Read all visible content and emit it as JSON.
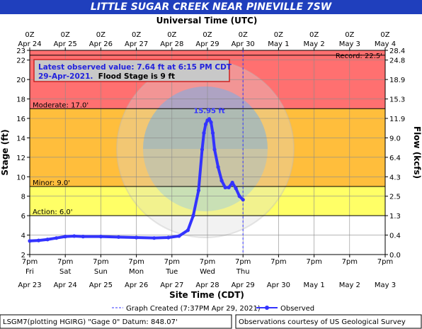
{
  "title": "LITTLE SUGAR CREEK NEAR PINEVILLE 7SW",
  "chart_data": {
    "type": "line",
    "top_axis_title": "Universal Time (UTC)",
    "bottom_axis_title": "Site Time (CDT)",
    "ylabel_left": "Stage (ft)",
    "ylabel_right": "Flow (kcfs)",
    "ylim": [
      2,
      23
    ],
    "xlim_days": [
      0,
      10
    ],
    "top_ticks": [
      [
        "0Z",
        "Apr 24"
      ],
      [
        "0Z",
        "Apr 25"
      ],
      [
        "0Z",
        "Apr 26"
      ],
      [
        "0Z",
        "Apr 27"
      ],
      [
        "0Z",
        "Apr 28"
      ],
      [
        "0Z",
        "Apr 29"
      ],
      [
        "0Z",
        "Apr 30"
      ],
      [
        "0Z",
        "May 1"
      ],
      [
        "0Z",
        "May 2"
      ],
      [
        "0Z",
        "May 3"
      ],
      [
        "0Z",
        "May 4"
      ]
    ],
    "bottom_ticks": [
      [
        "7pm",
        "Fri",
        "Apr 23"
      ],
      [
        "7pm",
        "Sat",
        "Apr 24"
      ],
      [
        "7pm",
        "Sun",
        "Apr 25"
      ],
      [
        "7pm",
        "Mon",
        "Apr 26"
      ],
      [
        "7pm",
        "Tue",
        "Apr 27"
      ],
      [
        "7pm",
        "Wed",
        "Apr 28"
      ],
      [
        "7pm",
        "Thu",
        "Apr 29"
      ],
      [
        "7pm",
        "",
        "Apr 30"
      ],
      [
        "7pm",
        "",
        "May 1"
      ],
      [
        "7pm",
        "",
        "May 2"
      ],
      [
        "7pm",
        "",
        "May 3"
      ]
    ],
    "left_ticks": [
      2,
      4,
      6,
      8,
      10,
      12,
      14,
      16,
      18,
      20,
      22,
      23
    ],
    "right_ticks": [
      [
        2,
        "0.0"
      ],
      [
        4,
        "0.4"
      ],
      [
        6,
        "1.3"
      ],
      [
        8,
        "2.5"
      ],
      [
        10,
        "4.3"
      ],
      [
        12,
        "6.4"
      ],
      [
        14,
        "9.0"
      ],
      [
        16,
        "11.9"
      ],
      [
        18,
        "15.3"
      ],
      [
        20,
        "18.9"
      ],
      [
        22,
        "24.8"
      ],
      [
        23,
        "28.4"
      ]
    ],
    "flood_categories": [
      {
        "name": "Action",
        "label": "Action: 6.0'",
        "stage": 6.0,
        "color": "#ffff66"
      },
      {
        "name": "Minor",
        "label": "Minor: 9.0'",
        "stage": 9.0,
        "color": "#ffbe3c"
      },
      {
        "name": "Moderate",
        "label": "Moderate: 17.0'",
        "stage": 17.0,
        "color": "#ff7070"
      },
      {
        "name": "Record",
        "label": "Record: 22.5'",
        "stage": 22.5
      }
    ],
    "peak_label": "15.95 ft",
    "peak": {
      "x": 5.05,
      "y": 15.95
    },
    "graph_created_x": 6.0,
    "series": [
      {
        "name": "Observed",
        "color": "#3333ff",
        "x": [
          0,
          0.25,
          0.5,
          0.75,
          1.0,
          1.25,
          1.5,
          2.0,
          2.5,
          3.0,
          3.5,
          3.9,
          4.2,
          4.45,
          4.6,
          4.75,
          4.85,
          4.9,
          4.95,
          5.0,
          5.05,
          5.1,
          5.15,
          5.2,
          5.3,
          5.4,
          5.5,
          5.6,
          5.7,
          5.8,
          5.9,
          6.0
        ],
        "y": [
          3.4,
          3.45,
          3.55,
          3.7,
          3.85,
          3.9,
          3.85,
          3.85,
          3.8,
          3.75,
          3.7,
          3.75,
          3.9,
          4.5,
          6.0,
          8.6,
          12.8,
          14.5,
          15.4,
          15.8,
          15.95,
          15.6,
          14.5,
          12.8,
          11.0,
          9.6,
          8.9,
          8.9,
          9.4,
          8.8,
          8.0,
          7.64
        ]
      }
    ]
  },
  "latest_box": {
    "line1": "Latest observed value: 7.64 ft at 6:15 PM CDT",
    "line2a": "29-Apr-2021.",
    "line2b": "  Flood Stage is 9 ft"
  },
  "legend": {
    "created_label": "Graph Created (7:37PM Apr 29, 2021)",
    "observed_label": "Observed"
  },
  "footer": {
    "left": "LSGM7(plotting HGIRG) \"Gage 0\" Datum: 848.07'",
    "right": "Observations courtesy of US Geological Survey"
  },
  "colors": {
    "title_bg": "#1f3fbd",
    "series": "#3333ff",
    "action": "#ffff66",
    "minor": "#ffbe3c",
    "moderate": "#ff7070"
  }
}
